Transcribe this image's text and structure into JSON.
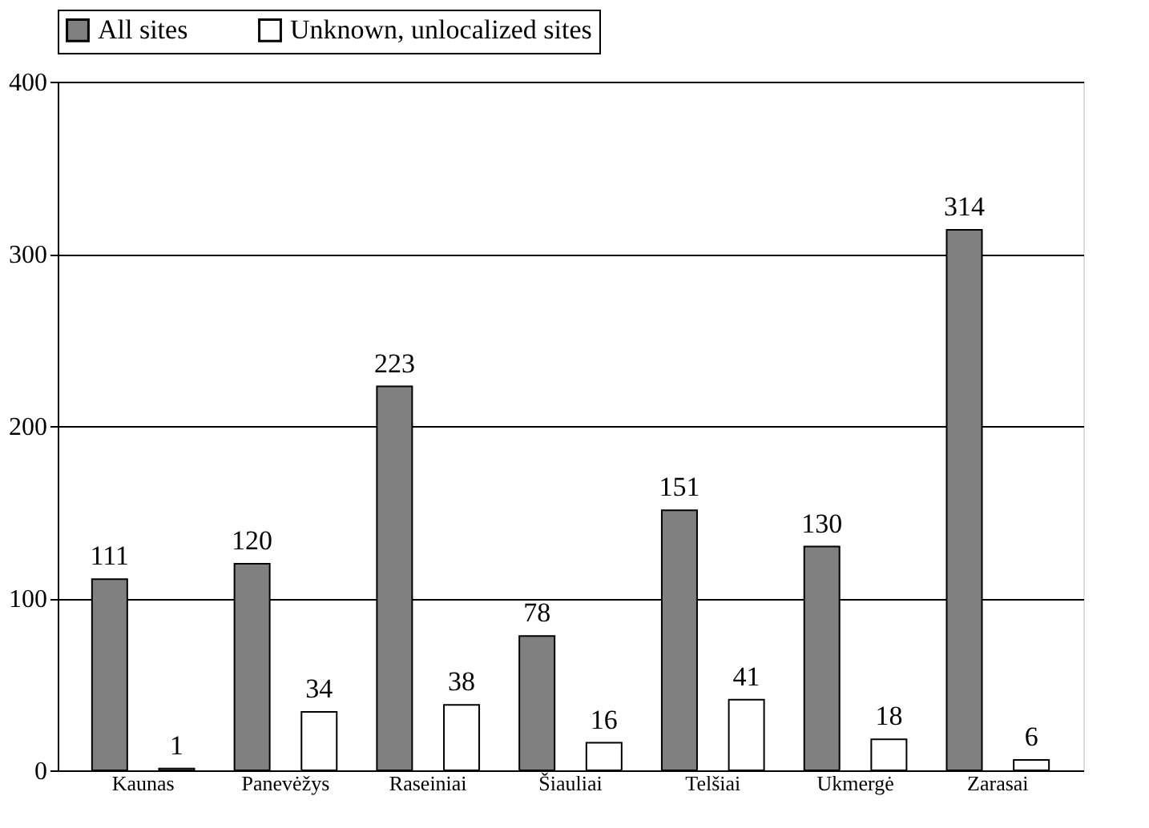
{
  "chart_data": {
    "type": "bar",
    "categories": [
      "Kaunas",
      "Panevėžys",
      "Raseiniai",
      "Šiauliai",
      "Telšiai",
      "Ukmergė",
      "Zarasai"
    ],
    "series": [
      {
        "name": "All sites",
        "color": "#808080",
        "values": [
          111,
          120,
          223,
          78,
          151,
          130,
          314
        ]
      },
      {
        "name": "Unknown, unlocalized sites",
        "color": "#ffffff",
        "values": [
          1,
          34,
          38,
          16,
          41,
          18,
          6
        ]
      }
    ],
    "ylim": [
      0,
      400
    ],
    "yticks": [
      0,
      100,
      200,
      300,
      400
    ],
    "grid": "y",
    "legend": "top",
    "data_labels": true
  }
}
